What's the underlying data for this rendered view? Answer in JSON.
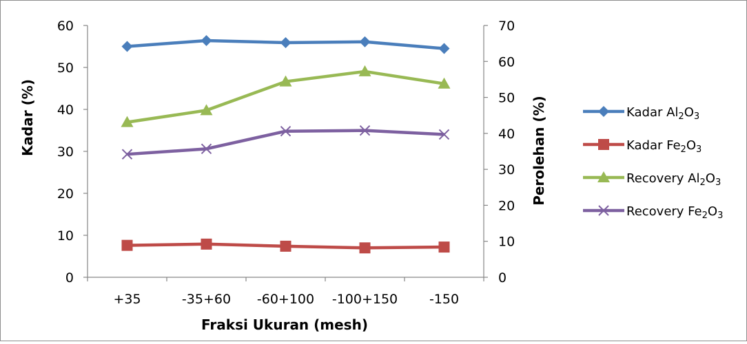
{
  "chart_data": {
    "type": "line",
    "xlabel": "Fraksi Ukuran (mesh)",
    "ylabel": "Kadar (%)",
    "y2label": "Perolehan (%)",
    "categories": [
      "+35",
      "-35+60",
      "-60+100",
      "-100+150",
      "-150"
    ],
    "ylim": [
      0,
      60
    ],
    "y2lim": [
      0,
      70
    ],
    "yticks": [
      "0",
      "10",
      "20",
      "30",
      "40",
      "50",
      "60"
    ],
    "y2ticks": [
      "0",
      "10",
      "20",
      "30",
      "40",
      "50",
      "60",
      "70"
    ],
    "grid": false,
    "legend_position": "right",
    "series": [
      {
        "name": "Kadar Al2O3",
        "legend_base": "Kadar Al",
        "legend_sub1": "2",
        "legend_mid": "O",
        "legend_sub2": "3",
        "axis": "left",
        "color": "#4a7ebb",
        "marker": "diamond",
        "values": [
          55.0,
          56.4,
          55.9,
          56.1,
          54.5
        ]
      },
      {
        "name": "Kadar Fe2O3",
        "legend_base": "Kadar Fe",
        "legend_sub1": "2",
        "legend_mid": "O",
        "legend_sub2": "3",
        "axis": "left",
        "color": "#be4b48",
        "marker": "square",
        "values": [
          7.6,
          7.9,
          7.4,
          7.0,
          7.2
        ]
      },
      {
        "name": "Recovery Al2O3",
        "legend_base": "Recovery Al",
        "legend_sub1": "2",
        "legend_mid": "O",
        "legend_sub2": "3",
        "axis": "right",
        "color": "#98b954",
        "marker": "triangle",
        "values": [
          43.1,
          46.4,
          54.4,
          57.2,
          53.8
        ]
      },
      {
        "name": "Recovery Fe2O3",
        "legend_base": "Recovery Fe",
        "legend_sub1": "2",
        "legend_mid": "O",
        "legend_sub2": "3",
        "axis": "right",
        "color": "#7d60a0",
        "marker": "x",
        "values": [
          34.2,
          35.7,
          40.6,
          40.8,
          39.7
        ]
      }
    ]
  }
}
